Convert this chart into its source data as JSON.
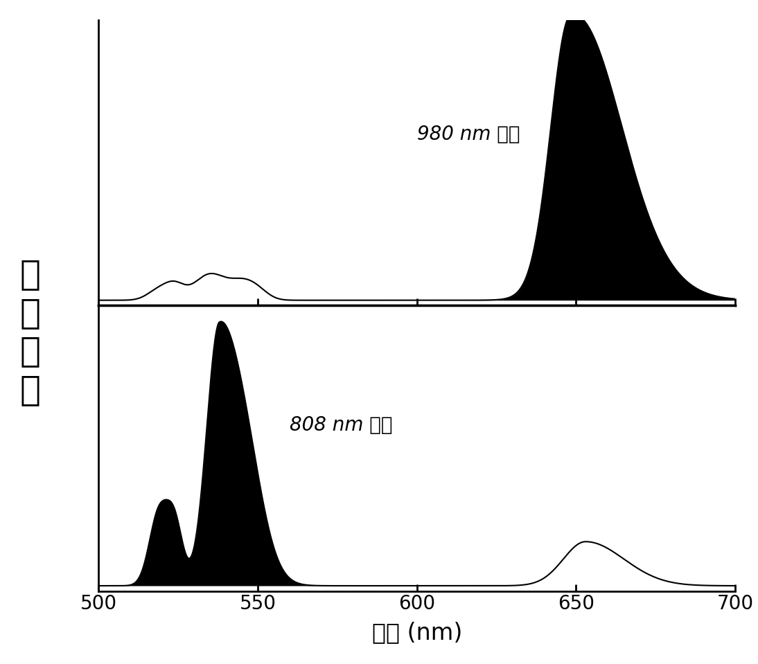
{
  "xlabel": "波长 (nm)",
  "ylabel": "相\n对\n强\n度",
  "xlim": [
    500,
    700
  ],
  "xticks": [
    500,
    550,
    600,
    650,
    700
  ],
  "background_color": "#ffffff",
  "label_top": "980 nm 激发",
  "label_bottom": "808 nm 激发",
  "annotation_fontstyle": "italic",
  "label_fontsize": 20,
  "axis_fontsize": 24,
  "tick_fontsize": 20,
  "ylabel_fontsize": 36
}
